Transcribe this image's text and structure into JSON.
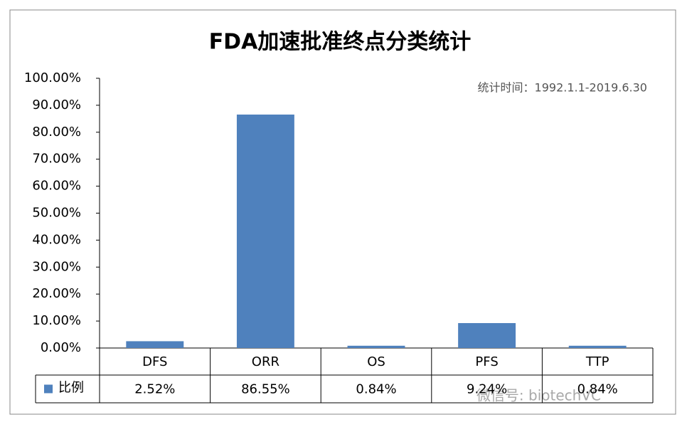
{
  "chart_data": {
    "type": "bar",
    "title": "FDA加速批准终点分类统计",
    "annotation": "统计时间：1992.1.1-2019.6.30",
    "categories": [
      "DFS",
      "ORR",
      "OS",
      "PFS",
      "TTP"
    ],
    "series": [
      {
        "name": "比例",
        "color": "#4f81bd",
        "values": [
          2.52,
          86.55,
          0.84,
          9.24,
          0.84
        ],
        "value_labels": [
          "2.52%",
          "86.55%",
          "0.84%",
          "9.24%",
          "0.84%"
        ]
      }
    ],
    "ylim": [
      0,
      100
    ],
    "yticks": [
      {
        "value": 0,
        "label": "0.00%"
      },
      {
        "value": 10,
        "label": "10.00%"
      },
      {
        "value": 20,
        "label": "20.00%"
      },
      {
        "value": 30,
        "label": "30.00%"
      },
      {
        "value": 40,
        "label": "40.00%"
      },
      {
        "value": 50,
        "label": "50.00%"
      },
      {
        "value": 60,
        "label": "60.00%"
      },
      {
        "value": 70,
        "label": "70.00%"
      },
      {
        "value": 80,
        "label": "80.00%"
      },
      {
        "value": 90,
        "label": "90.00%"
      },
      {
        "value": 100,
        "label": "100.00%"
      }
    ],
    "grid": false,
    "watermark": "微信号: biotechVC"
  }
}
